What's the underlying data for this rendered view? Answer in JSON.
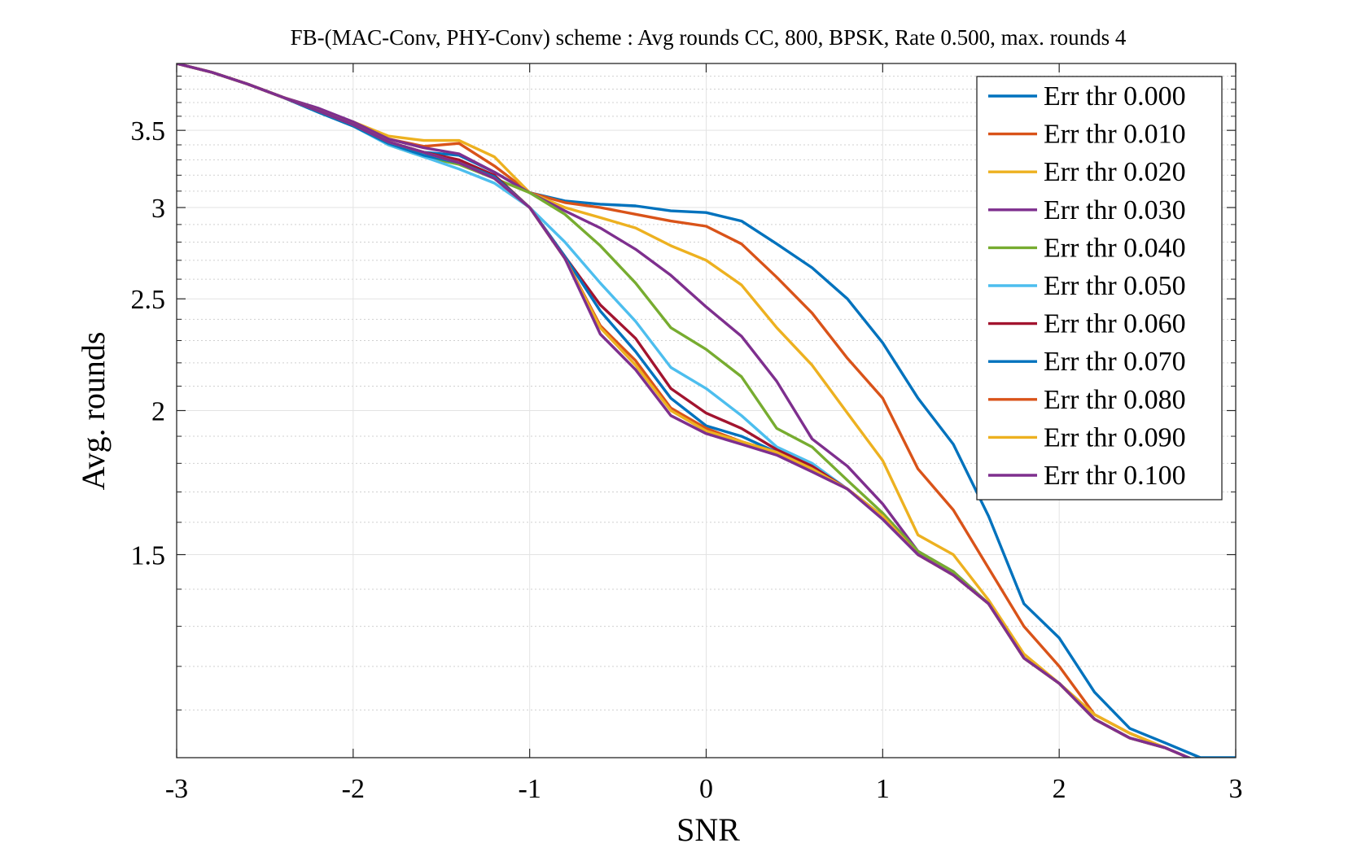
{
  "chart_data": {
    "type": "line",
    "title": "FB-(MAC-Conv, PHY-Conv) scheme : Avg rounds CC, 800, BPSK, Rate 0.500, max. rounds 4",
    "xlabel": "SNR",
    "ylabel": "Avg. rounds",
    "xlim": [
      -3,
      3
    ],
    "ylim": [
      1.0,
      4.0
    ],
    "yscale": "log",
    "grid": true,
    "minor_grid": true,
    "legend_position": "top-right",
    "x_ticks": [
      -3,
      -2,
      -1,
      0,
      1,
      2,
      3
    ],
    "x_tick_labels": [
      "-3",
      "-2",
      "-1",
      "0",
      "1",
      "2",
      "3"
    ],
    "y_ticks": [
      1.5,
      2,
      2.5,
      3,
      3.5
    ],
    "y_tick_labels": [
      "1.5",
      "2",
      "2.5",
      "3",
      "3.5"
    ],
    "y_minor_ticks": [
      1.1,
      1.2,
      1.3,
      1.4,
      1.6,
      1.7,
      1.8,
      1.9,
      2.1,
      2.2,
      2.3,
      2.4,
      2.6,
      2.7,
      2.8,
      2.9,
      3.1,
      3.2,
      3.3,
      3.4,
      3.6,
      3.7,
      3.8,
      3.9
    ],
    "x": [
      -3.0,
      -2.8,
      -2.6,
      -2.4,
      -2.2,
      -2.0,
      -1.8,
      -1.6,
      -1.4,
      -1.2,
      -1.0,
      -0.8,
      -0.6,
      -0.4,
      -0.2,
      0.0,
      0.2,
      0.4,
      0.6,
      0.8,
      1.0,
      1.2,
      1.4,
      1.6,
      1.8,
      2.0,
      2.2,
      2.4,
      2.6,
      2.8,
      3.0
    ],
    "series": [
      {
        "name": "Err thr 0.000",
        "color": "#0072BD",
        "values": [
          4.0,
          3.93,
          3.84,
          3.74,
          3.64,
          3.54,
          3.42,
          3.35,
          3.33,
          3.22,
          3.09,
          3.04,
          3.02,
          3.01,
          2.98,
          2.97,
          2.92,
          2.79,
          2.66,
          2.5,
          2.29,
          2.05,
          1.87,
          1.62,
          1.36,
          1.27,
          1.14,
          1.06,
          1.03,
          1.0,
          1.0
        ]
      },
      {
        "name": "Err thr 0.010",
        "color": "#D95319",
        "values": [
          4.0,
          3.93,
          3.84,
          3.74,
          3.64,
          3.54,
          3.44,
          3.39,
          3.41,
          3.26,
          3.09,
          3.03,
          3.0,
          2.96,
          2.92,
          2.89,
          2.79,
          2.61,
          2.43,
          2.22,
          2.05,
          1.78,
          1.64,
          1.46,
          1.3,
          1.2,
          1.09,
          1.05,
          1.02,
          0.99,
          0.99
        ]
      },
      {
        "name": "Err thr 0.020",
        "color": "#EDB120",
        "values": [
          4.0,
          3.93,
          3.84,
          3.74,
          3.65,
          3.56,
          3.46,
          3.43,
          3.43,
          3.32,
          3.09,
          3.0,
          2.94,
          2.88,
          2.78,
          2.7,
          2.57,
          2.36,
          2.19,
          1.99,
          1.81,
          1.56,
          1.5,
          1.37,
          1.23,
          1.16,
          1.09,
          1.05,
          1.02,
          0.99,
          0.99
        ]
      },
      {
        "name": "Err thr 0.030",
        "color": "#7E2F8E",
        "values": [
          4.0,
          3.93,
          3.84,
          3.74,
          3.66,
          3.56,
          3.44,
          3.38,
          3.34,
          3.22,
          3.09,
          2.98,
          2.88,
          2.76,
          2.62,
          2.46,
          2.32,
          2.12,
          1.89,
          1.79,
          1.66,
          1.51,
          1.45,
          1.36,
          1.22,
          1.16,
          1.08,
          1.04,
          1.02,
          0.99,
          0.99
        ]
      },
      {
        "name": "Err thr 0.040",
        "color": "#77AC30",
        "values": [
          4.0,
          3.93,
          3.84,
          3.74,
          3.64,
          3.54,
          3.4,
          3.32,
          3.27,
          3.18,
          3.09,
          2.96,
          2.78,
          2.58,
          2.36,
          2.26,
          2.14,
          1.93,
          1.86,
          1.74,
          1.63,
          1.51,
          1.45,
          1.36,
          1.22,
          1.16,
          1.08,
          1.04,
          1.02,
          0.99,
          0.99
        ]
      },
      {
        "name": "Err thr 0.050",
        "color": "#4DBEEE",
        "values": [
          4.0,
          3.93,
          3.84,
          3.74,
          3.63,
          3.53,
          3.4,
          3.32,
          3.24,
          3.15,
          3.0,
          2.8,
          2.58,
          2.39,
          2.18,
          2.09,
          1.98,
          1.86,
          1.8,
          1.71,
          1.61,
          1.5,
          1.44,
          1.36,
          1.22,
          1.16,
          1.08,
          1.04,
          1.02,
          0.99,
          0.99
        ]
      },
      {
        "name": "Err thr 0.060",
        "color": "#A2142F",
        "values": [
          4.0,
          3.93,
          3.84,
          3.74,
          3.64,
          3.54,
          3.42,
          3.35,
          3.3,
          3.2,
          3.0,
          2.72,
          2.47,
          2.31,
          2.09,
          1.99,
          1.93,
          1.85,
          1.79,
          1.71,
          1.62,
          1.5,
          1.44,
          1.36,
          1.22,
          1.16,
          1.08,
          1.04,
          1.02,
          0.99,
          0.99
        ]
      },
      {
        "name": "Err thr 0.070",
        "color": "#0072BD",
        "values": [
          4.0,
          3.93,
          3.84,
          3.74,
          3.63,
          3.53,
          3.41,
          3.33,
          3.28,
          3.19,
          3.0,
          2.72,
          2.44,
          2.25,
          2.05,
          1.94,
          1.9,
          1.84,
          1.78,
          1.71,
          1.62,
          1.5,
          1.44,
          1.36,
          1.22,
          1.16,
          1.08,
          1.04,
          1.02,
          0.99,
          0.99
        ]
      },
      {
        "name": "Err thr 0.080",
        "color": "#D95319",
        "values": [
          4.0,
          3.93,
          3.84,
          3.74,
          3.64,
          3.54,
          3.42,
          3.35,
          3.28,
          3.18,
          3.0,
          2.71,
          2.37,
          2.21,
          2.01,
          1.93,
          1.88,
          1.84,
          1.78,
          1.71,
          1.62,
          1.5,
          1.44,
          1.36,
          1.22,
          1.16,
          1.08,
          1.04,
          1.02,
          0.99,
          0.99
        ]
      },
      {
        "name": "Err thr 0.090",
        "color": "#EDB120",
        "values": [
          4.0,
          3.93,
          3.84,
          3.74,
          3.64,
          3.54,
          3.42,
          3.35,
          3.28,
          3.18,
          3.0,
          2.71,
          2.36,
          2.19,
          2.0,
          1.92,
          1.88,
          1.84,
          1.78,
          1.71,
          1.62,
          1.5,
          1.44,
          1.36,
          1.22,
          1.16,
          1.08,
          1.04,
          1.02,
          0.99,
          0.99
        ]
      },
      {
        "name": "Err thr 0.100",
        "color": "#7E2F8E",
        "values": [
          4.0,
          3.93,
          3.84,
          3.74,
          3.64,
          3.54,
          3.42,
          3.35,
          3.28,
          3.18,
          3.0,
          2.71,
          2.33,
          2.17,
          1.98,
          1.91,
          1.87,
          1.83,
          1.77,
          1.71,
          1.61,
          1.5,
          1.44,
          1.36,
          1.22,
          1.16,
          1.08,
          1.04,
          1.02,
          0.99,
          0.99
        ]
      }
    ]
  }
}
